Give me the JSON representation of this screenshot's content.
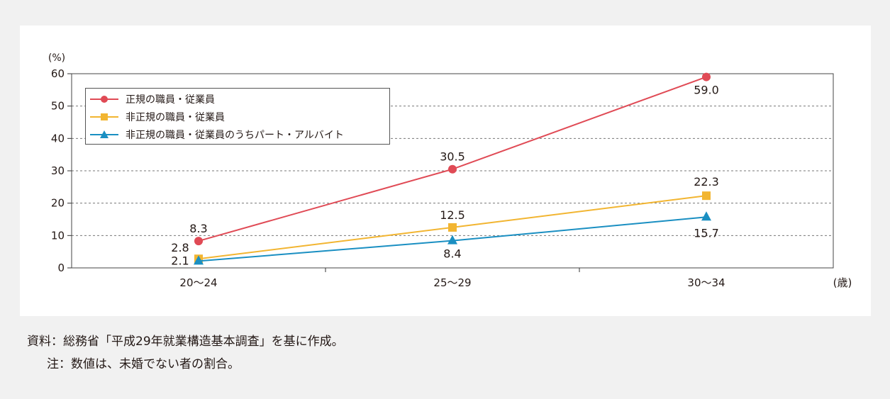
{
  "chart_data": {
    "type": "line",
    "categories": [
      "20～24",
      "25～29",
      "30～34"
    ],
    "y_unit_label": "(%)",
    "x_unit_label": "(歳)",
    "ylim": [
      0,
      60
    ],
    "yticks": [
      0,
      10,
      20,
      30,
      40,
      50,
      60
    ],
    "grid": "horizontal-dashed",
    "legend_position": "top-left",
    "series": [
      {
        "name": "正規の職員・従業員",
        "values": [
          8.3,
          30.5,
          59.0
        ],
        "labels": [
          "8.3",
          "30.5",
          "59.0"
        ],
        "color": "#e04a55",
        "marker": "circle"
      },
      {
        "name": "非正規の職員・従業員",
        "values": [
          2.8,
          12.5,
          22.3
        ],
        "labels": [
          "2.8",
          "12.5",
          "22.3"
        ],
        "color": "#f2b531",
        "marker": "square"
      },
      {
        "name": "非正規の職員・従業員のうちパート・アルバイト",
        "values": [
          2.1,
          8.4,
          15.7
        ],
        "labels": [
          "2.1",
          "8.4",
          "15.7"
        ],
        "color": "#1a8fc2",
        "marker": "triangle"
      }
    ]
  },
  "notes": {
    "source": "資料：総務省「平成29年就業構造基本調査」を基に作成。",
    "note": "注：数値は、未婚でない者の割合。"
  }
}
